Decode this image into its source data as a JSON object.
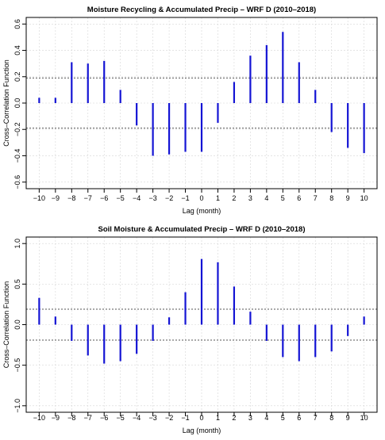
{
  "colors": {
    "bar": "#1414d4",
    "ci": "#555555",
    "grid": "#d6d6d6",
    "frame": "#000000"
  },
  "chart_data": [
    {
      "type": "bar",
      "title": "Moisture Recycling & Accumulated Precip – WRF D (2010–2018)",
      "xlabel": "Lag (month)",
      "ylabel": "Cross–Correlation Function",
      "x": [
        -10,
        -9,
        -8,
        -7,
        -6,
        -5,
        -4,
        -3,
        -2,
        -1,
        0,
        1,
        2,
        3,
        4,
        5,
        6,
        7,
        8,
        9,
        10
      ],
      "x_tick_labels": [
        "−10",
        "−9",
        "−8",
        "−7",
        "−6",
        "−5",
        "−4",
        "−3",
        "−2",
        "−1",
        "0",
        "1",
        "2",
        "3",
        "4",
        "5",
        "6",
        "7",
        "8",
        "9",
        "10"
      ],
      "values": [
        0.04,
        0.04,
        0.31,
        0.3,
        0.32,
        0.1,
        -0.17,
        -0.4,
        -0.39,
        -0.37,
        -0.37,
        -0.15,
        0.16,
        0.36,
        0.44,
        0.54,
        0.31,
        0.1,
        -0.22,
        -0.34,
        -0.38
      ],
      "ylim": [
        -0.65,
        0.65
      ],
      "yticks": [
        -0.6,
        -0.4,
        -0.2,
        0.0,
        0.2,
        0.4,
        0.6
      ],
      "y_tick_labels": [
        "−0.6",
        "−0.4",
        "−0.2",
        "0.0",
        "0.2",
        "0.4",
        "0.6"
      ],
      "confidence_band": [
        -0.19,
        0.19
      ],
      "grid": true
    },
    {
      "type": "bar",
      "title": "Soil Moisture & Accumulated Precip – WRF D (2010–2018)",
      "xlabel": "Lag (month)",
      "ylabel": "Cross–Correlation Function",
      "x": [
        -10,
        -9,
        -8,
        -7,
        -6,
        -5,
        -4,
        -3,
        -2,
        -1,
        0,
        1,
        2,
        3,
        4,
        5,
        6,
        7,
        8,
        9,
        10
      ],
      "x_tick_labels": [
        "−10",
        "−9",
        "−8",
        "−7",
        "−6",
        "−5",
        "−4",
        "−3",
        "−2",
        "−1",
        "0",
        "1",
        "2",
        "3",
        "4",
        "5",
        "6",
        "7",
        "8",
        "9",
        "10"
      ],
      "values": [
        0.33,
        0.1,
        -0.2,
        -0.38,
        -0.48,
        -0.45,
        -0.36,
        -0.2,
        0.09,
        0.4,
        0.81,
        0.77,
        0.47,
        0.16,
        -0.2,
        -0.4,
        -0.45,
        -0.4,
        -0.33,
        -0.14,
        0.1
      ],
      "ylim": [
        -1.08,
        1.08
      ],
      "yticks": [
        -1.0,
        -0.5,
        0.0,
        0.5,
        1.0
      ],
      "y_tick_labels": [
        "−1.0",
        "−0.5",
        "0.0",
        "0.5",
        "1.0"
      ],
      "confidence_band": [
        -0.19,
        0.19
      ],
      "grid": true
    }
  ]
}
